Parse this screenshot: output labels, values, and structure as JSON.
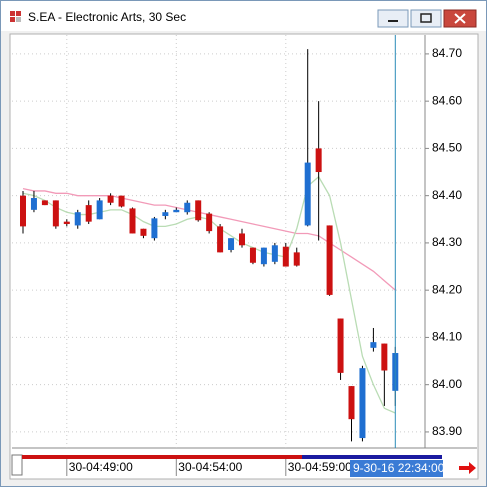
{
  "window": {
    "title": "S.EA - Electronic Arts, 30 Sec"
  },
  "chart_data": {
    "type": "candlestick",
    "categories": [
      null,
      null,
      null,
      null,
      "30-04:49:00",
      null,
      null,
      null,
      null,
      null,
      null,
      null,
      null,
      null,
      "30-04:54:00",
      null,
      null,
      null,
      null,
      null,
      null,
      null,
      null,
      null,
      "30-04:59:00",
      null,
      null,
      null,
      null,
      null,
      null,
      null,
      null,
      null,
      null
    ],
    "open": [
      84.4,
      84.37,
      84.39,
      84.39,
      84.345,
      84.337,
      84.38,
      84.35,
      84.4,
      84.4,
      84.373,
      84.33,
      84.31,
      84.357,
      84.365,
      84.365,
      84.39,
      84.362,
      84.335,
      84.285,
      84.32,
      84.29,
      84.255,
      84.26,
      84.292,
      84.28,
      84.337,
      84.5,
      84.337,
      84.14,
      83.997,
      83.887,
      84.078,
      84.087,
      83.987
    ],
    "high": [
      84.41,
      84.41,
      84.39,
      84.39,
      84.35,
      84.37,
      84.39,
      84.395,
      84.405,
      84.4,
      84.375,
      84.33,
      84.355,
      84.37,
      84.375,
      84.39,
      84.39,
      84.365,
      84.34,
      84.31,
      84.33,
      84.29,
      84.29,
      84.3,
      84.3,
      84.29,
      84.71,
      84.6,
      84.337,
      84.14,
      83.997,
      84.04,
      84.12,
      84.087,
      84.08
    ],
    "low": [
      84.32,
      84.365,
      84.38,
      84.33,
      84.335,
      84.33,
      84.34,
      84.35,
      84.38,
      84.375,
      84.32,
      84.31,
      84.305,
      84.35,
      84.365,
      84.36,
      84.345,
      84.32,
      84.28,
      84.28,
      84.29,
      84.255,
      84.25,
      84.255,
      84.25,
      84.25,
      84.335,
      84.305,
      84.188,
      84.01,
      83.88,
      83.88,
      84.07,
      83.955,
      83.955
    ],
    "close": [
      84.335,
      84.395,
      84.38,
      84.335,
      84.34,
      84.365,
      84.345,
      84.39,
      84.385,
      84.377,
      84.32,
      84.315,
      84.352,
      84.365,
      84.37,
      84.385,
      84.348,
      84.325,
      84.28,
      84.31,
      84.295,
      84.258,
      84.29,
      84.295,
      84.25,
      84.252,
      84.47,
      84.45,
      84.19,
      84.025,
      83.927,
      84.035,
      84.09,
      84.03,
      84.067
    ],
    "up_color": "#1f6fd1",
    "down_color": "#cc1111",
    "lines": [
      {
        "color": "#f29ab8",
        "values": [
          84.415,
          84.41,
          84.41,
          84.405,
          84.405,
          84.4,
          84.4,
          84.4,
          84.4,
          84.395,
          84.39,
          84.385,
          84.38,
          84.38,
          84.375,
          84.37,
          84.365,
          84.36,
          84.355,
          84.35,
          84.345,
          84.34,
          84.335,
          84.33,
          84.325,
          84.32,
          84.32,
          84.315,
          84.3,
          84.285,
          84.27,
          84.255,
          84.24,
          84.22,
          84.2
        ]
      },
      {
        "color": "#b9dcb4",
        "values": [
          84.405,
          84.4,
          84.39,
          84.375,
          84.365,
          84.36,
          84.36,
          84.365,
          84.37,
          84.37,
          84.36,
          84.345,
          84.335,
          84.335,
          84.34,
          84.35,
          84.355,
          84.35,
          84.33,
          84.315,
          84.3,
          84.29,
          84.28,
          84.275,
          84.27,
          84.33,
          84.42,
          84.44,
          84.4,
          84.3,
          84.18,
          84.06,
          84.0,
          83.95,
          83.94
        ]
      }
    ],
    "ylim": [
      83.866,
      84.74
    ],
    "yticks": [
      {
        "value": 84.7,
        "label": "84.70"
      },
      {
        "value": 84.6,
        "label": "84.60"
      },
      {
        "value": 84.5,
        "label": "84.50"
      },
      {
        "value": 84.4,
        "label": "84.40"
      },
      {
        "value": 84.3,
        "label": "84.30"
      },
      {
        "value": 84.2,
        "label": "84.20"
      },
      {
        "value": 84.1,
        "label": "84.10"
      },
      {
        "value": 84.0,
        "label": "84.00"
      },
      {
        "value": 83.9,
        "label": "83.90"
      }
    ],
    "grid": true,
    "cursor_label": "9-30-16 22:34:00"
  }
}
